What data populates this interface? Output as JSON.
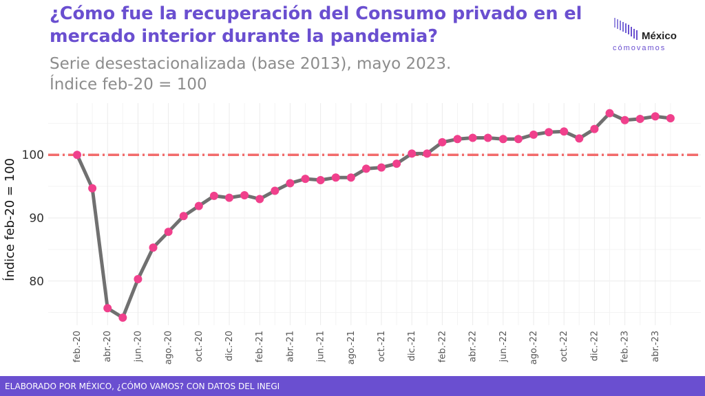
{
  "header": {
    "title": "¿Cómo fue la recuperación del Consumo privado en el mercado interior durante la pandemia?",
    "subtitle_line1": "Serie desestacionalizada (base 2013), mayo 2023.",
    "subtitle_line2": "Índice feb-20 = 100"
  },
  "logo": {
    "name": "México",
    "tagline": "cómovamos",
    "accent_color": "#6a4fd0"
  },
  "footer": {
    "text": "ELABORADO POR MÉXICO, ¿CÓMO VAMOS? CON DATOS DEL INEGI"
  },
  "colors": {
    "title": "#6a4fd0",
    "line": "#707070",
    "points": "#f0408c",
    "reference": "#f26b6b",
    "footer_bg": "#6a4fd0"
  },
  "chart_data": {
    "type": "line",
    "x": [
      "feb.-20",
      "mar.-20",
      "abr.-20",
      "may.-20",
      "jun.-20",
      "jul.-20",
      "ago.-20",
      "sep.-20",
      "oct.-20",
      "nov.-20",
      "dic.-20",
      "ene.-21",
      "feb.-21",
      "mar.-21",
      "abr.-21",
      "may.-21",
      "jun.-21",
      "jul.-21",
      "ago.-21",
      "sep.-21",
      "oct.-21",
      "nov.-21",
      "dic.-21",
      "ene.-22",
      "feb.-22",
      "mar.-22",
      "abr.-22",
      "may.-22",
      "jun.-22",
      "jul.-22",
      "ago.-22",
      "sep.-22",
      "oct.-22",
      "nov.-22",
      "dic.-22",
      "ene.-23",
      "feb.-23",
      "mar.-23",
      "abr.-23",
      "may.-23"
    ],
    "tick_labels": [
      "feb.-20",
      "abr.-20",
      "jun.-20",
      "ago.-20",
      "oct.-20",
      "dic.-20",
      "feb.-21",
      "abr.-21",
      "jun.-21",
      "ago.-21",
      "oct.-21",
      "dic.-21",
      "feb.-22",
      "abr.-22",
      "jun.-22",
      "ago.-22",
      "oct.-22",
      "dic.-22",
      "feb.-23",
      "abr.-23"
    ],
    "series": [
      {
        "values": [
          100,
          94.7,
          75.7,
          74.2,
          80.3,
          85.3,
          87.8,
          90.3,
          91.9,
          93.5,
          93.2,
          93.6,
          93.0,
          94.3,
          95.5,
          96.2,
          96.0,
          96.4,
          96.4,
          97.8,
          98.0,
          98.6,
          100.2,
          100.2,
          102.0,
          102.5,
          102.7,
          102.7,
          102.5,
          102.5,
          103.2,
          103.6,
          103.7,
          102.6,
          104.1,
          106.6,
          105.5,
          105.7,
          106.1,
          105.8
        ]
      }
    ],
    "reference_line": 100,
    "ylabel": "Índice feb-20 = 100",
    "xlabel": "",
    "yticks": [
      80,
      90,
      100
    ],
    "ylim": [
      73,
      108.2
    ],
    "grid": true,
    "legend": "none"
  }
}
